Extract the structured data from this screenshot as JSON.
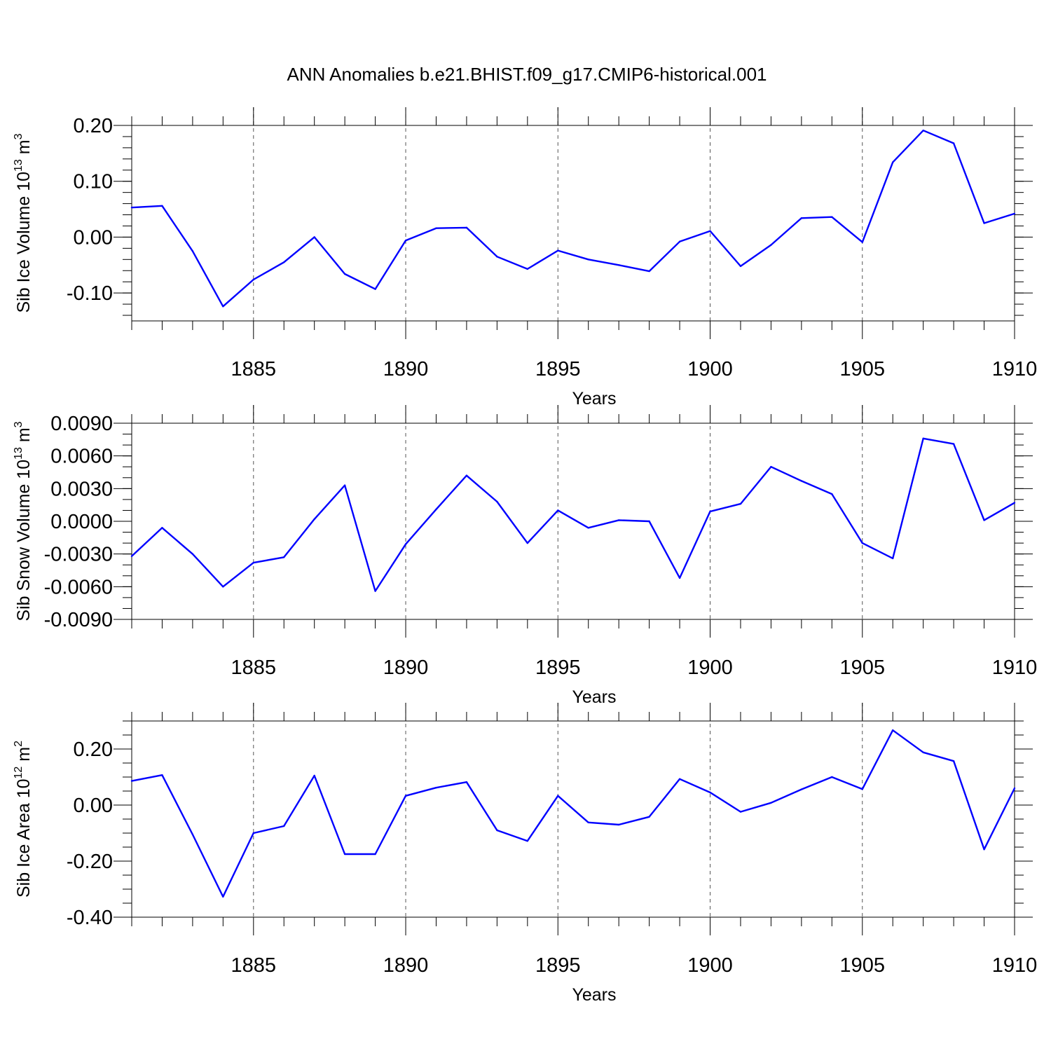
{
  "chart_data": {
    "type": "line",
    "title": "ANN Anomalies b.e21.BHIST.f09_g17.CMIP6-historical.001",
    "panels": [
      {
        "name": "volume",
        "type": "line",
        "ylabel": "Sib Ice Volume 10",
        "ylabel_sup": "13",
        "ylabel_unit": " m",
        "ylabel_unit_sup": "3",
        "xlabel": "Years",
        "xlim": [
          1881,
          1910
        ],
        "ylim": [
          -0.15,
          0.2
        ],
        "yticks": [
          0.2,
          0.1,
          0.0,
          -0.1
        ],
        "ytick_labels": [
          "0.20",
          "0.10",
          "0.00",
          "-0.10"
        ],
        "xticks": [
          1885,
          1890,
          1895,
          1900,
          1905,
          1910
        ],
        "xtick_labels": [
          "1885",
          "1890",
          "1895",
          "1900",
          "1905",
          "1910"
        ],
        "x": [
          1881,
          1882,
          1883,
          1884,
          1885,
          1886,
          1887,
          1888,
          1889,
          1890,
          1891,
          1892,
          1893,
          1894,
          1895,
          1896,
          1897,
          1898,
          1899,
          1900,
          1901,
          1902,
          1903,
          1904,
          1905,
          1906,
          1907,
          1908,
          1909,
          1910
        ],
        "values": [
          0.053,
          0.056,
          -0.025,
          -0.124,
          -0.076,
          -0.045,
          0.0,
          -0.066,
          -0.093,
          -0.006,
          0.016,
          0.017,
          -0.035,
          -0.057,
          -0.024,
          -0.04,
          -0.05,
          -0.061,
          -0.008,
          0.011,
          -0.052,
          -0.014,
          0.034,
          0.036,
          -0.009,
          0.134,
          0.191,
          0.168,
          0.025,
          0.042
        ]
      },
      {
        "name": "snow",
        "type": "line",
        "ylabel": "Sib Snow Volume 10",
        "ylabel_sup": "13",
        "ylabel_unit": " m",
        "ylabel_unit_sup": "3",
        "xlabel": "Years",
        "xlim": [
          1881,
          1910
        ],
        "ylim": [
          -0.009,
          0.009
        ],
        "yticks": [
          0.009,
          0.006,
          0.003,
          0.0,
          -0.003,
          -0.006,
          -0.009
        ],
        "ytick_labels": [
          "0.0090",
          "0.0060",
          "0.0030",
          "0.0000",
          "-0.0030",
          "-0.0060",
          "-0.0090"
        ],
        "xticks": [
          1885,
          1890,
          1895,
          1900,
          1905,
          1910
        ],
        "xtick_labels": [
          "1885",
          "1890",
          "1895",
          "1900",
          "1905",
          "1910"
        ],
        "x": [
          1881,
          1882,
          1883,
          1884,
          1885,
          1886,
          1887,
          1888,
          1889,
          1890,
          1891,
          1892,
          1893,
          1894,
          1895,
          1896,
          1897,
          1898,
          1899,
          1900,
          1901,
          1902,
          1903,
          1904,
          1905,
          1906,
          1907,
          1908,
          1909,
          1910
        ],
        "values": [
          -0.0032,
          -0.0006,
          -0.003,
          -0.006,
          -0.0038,
          -0.0033,
          0.0002,
          0.0033,
          -0.0064,
          -0.0021,
          0.0011,
          0.0042,
          0.0018,
          -0.002,
          0.001,
          -0.0006,
          0.0001,
          0.0,
          -0.0052,
          0.0009,
          0.0016,
          0.005,
          0.0037,
          0.0025,
          -0.002,
          -0.0034,
          0.0076,
          0.0071,
          0.0001,
          0.0017
        ]
      },
      {
        "name": "area",
        "type": "line",
        "ylabel": "Sib Ice Area 10",
        "ylabel_sup": "12",
        "ylabel_unit": " m",
        "ylabel_unit_sup": "2",
        "xlabel": "Years",
        "xlim": [
          1881,
          1910
        ],
        "ylim": [
          -0.4,
          0.3
        ],
        "yticks": [
          0.2,
          0.0,
          -0.2,
          -0.4
        ],
        "ytick_labels": [
          "0.20",
          "0.00",
          "-0.20",
          "-0.40"
        ],
        "xticks": [
          1885,
          1890,
          1895,
          1900,
          1905,
          1910
        ],
        "xtick_labels": [
          "1885",
          "1890",
          "1895",
          "1900",
          "1905",
          "1910"
        ],
        "x": [
          1881,
          1882,
          1883,
          1884,
          1885,
          1886,
          1887,
          1888,
          1889,
          1890,
          1891,
          1892,
          1893,
          1894,
          1895,
          1896,
          1897,
          1898,
          1899,
          1900,
          1901,
          1902,
          1903,
          1904,
          1905,
          1906,
          1907,
          1908,
          1909,
          1910
        ],
        "values": [
          0.086,
          0.107,
          -0.105,
          -0.327,
          -0.1,
          -0.075,
          0.105,
          -0.175,
          -0.175,
          0.033,
          0.062,
          0.082,
          -0.09,
          -0.128,
          0.033,
          -0.062,
          -0.07,
          -0.042,
          0.093,
          0.045,
          -0.024,
          0.008,
          0.056,
          0.1,
          0.057,
          0.267,
          0.188,
          0.157,
          -0.158,
          0.06
        ]
      }
    ]
  }
}
